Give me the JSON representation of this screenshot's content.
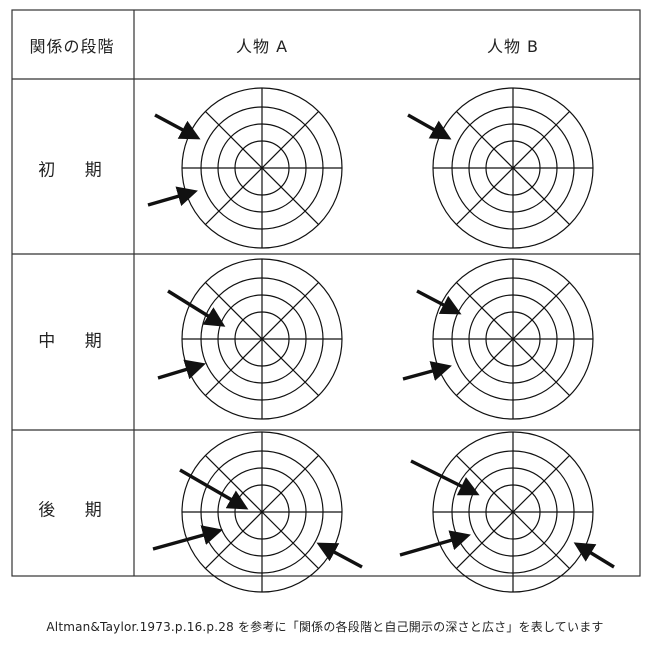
{
  "table": {
    "header_stage": "関係の段階",
    "person_a": "人物 A",
    "person_b": "人物 B",
    "stages": [
      {
        "label": "初 期"
      },
      {
        "label": "中 期"
      },
      {
        "label": "後 期"
      }
    ]
  },
  "caption": "Altman&Taylor.1973.p.16.p.28 を参考に「関係の各段階と自己開示の深さと広さ」を表しています",
  "colors": {
    "line": "#111111",
    "border": "#333333"
  },
  "icons": [
    "circle-diagram",
    "arrow"
  ]
}
